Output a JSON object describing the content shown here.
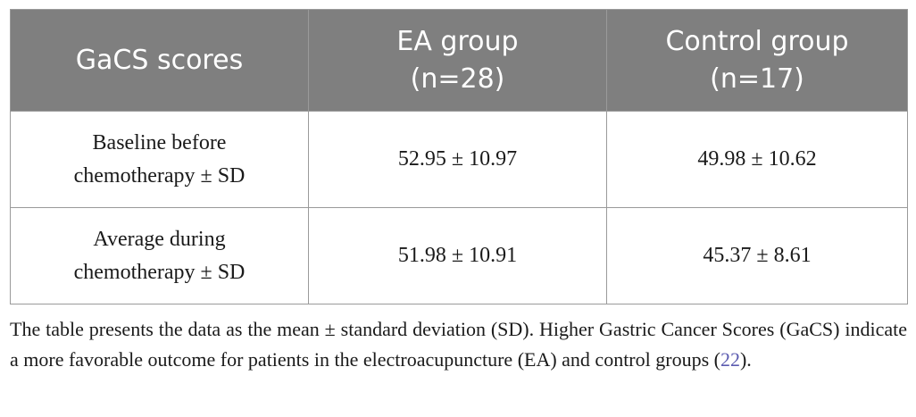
{
  "table": {
    "headers": [
      "GaCS scores",
      "EA group\n(n=28)",
      "Control group\n(n=17)"
    ],
    "header_lines": [
      [
        "GaCS scores"
      ],
      [
        "EA group",
        "(n=28)"
      ],
      [
        "Control group",
        "(n=17)"
      ]
    ],
    "rows": [
      {
        "label_lines": [
          "Baseline before",
          "chemotherapy ± SD"
        ],
        "ea": "52.95 ± 10.97",
        "control": "49.98 ± 10.62"
      },
      {
        "label_lines": [
          "Average during",
          "chemotherapy ± SD"
        ],
        "ea": "51.98 ± 10.91",
        "control": "45.37 ± 8.61"
      }
    ]
  },
  "caption": {
    "text_before_ref": "The table presents the data as the mean ± standard deviation (SD). Higher Gastric Cancer Scores (GaCS) indicate a more favorable outcome for patients in the electroacupuncture (EA) and control groups (",
    "ref": "22",
    "text_after_ref": ")."
  },
  "colors": {
    "header_bg": "#7f7f7f",
    "header_text": "#ffffff",
    "border": "#9a9a9a",
    "ref_link": "#5b5bb0"
  }
}
